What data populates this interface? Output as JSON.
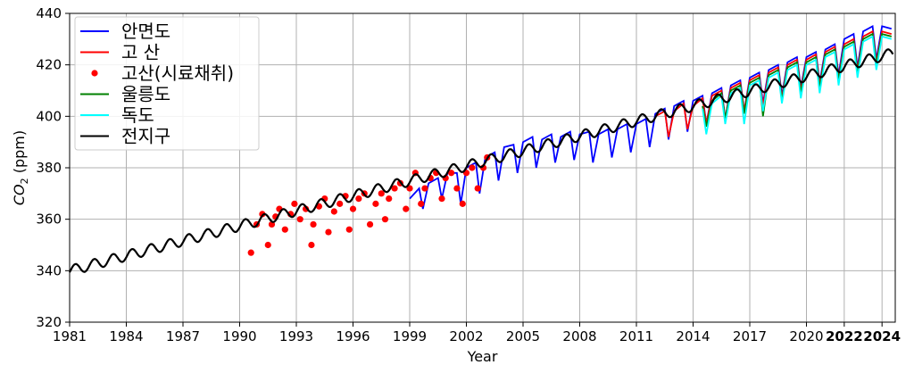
{
  "chart_data": {
    "type": "line",
    "xlabel": "Year",
    "ylabel": "CO2 (ppm)",
    "ylabel_main": "CO",
    "ylabel_sub": "2",
    "ylabel_rest": " (ppm)",
    "xlim": [
      1981,
      2024.7
    ],
    "ylim": [
      320,
      440
    ],
    "grid": true,
    "legend_position": "top-left",
    "x_ticks": [
      1981,
      1984,
      1987,
      1990,
      1993,
      1996,
      1999,
      2002,
      2005,
      2008,
      2011,
      2014,
      2017,
      2020,
      2022,
      2024
    ],
    "x_tick_labels": [
      "1981",
      "1984",
      "1987",
      "1990",
      "1993",
      "1996",
      "1999",
      "2002",
      "2005",
      "2008",
      "2011",
      "2014",
      "2017",
      "2020",
      "2022",
      "2024"
    ],
    "x_tick_bold": [
      false,
      false,
      false,
      false,
      false,
      false,
      false,
      false,
      false,
      false,
      false,
      false,
      false,
      false,
      true,
      true
    ],
    "y_ticks": [
      320,
      340,
      360,
      380,
      400,
      420,
      440
    ],
    "y_tick_labels": [
      "320",
      "340",
      "360",
      "380",
      "400",
      "420",
      "440"
    ],
    "series": [
      {
        "name": "안면도",
        "color": "#0000ff",
        "style": "line",
        "x": [
          1999.0,
          1999.5,
          1999.7,
          2000.0,
          2000.5,
          2000.7,
          2001.0,
          2001.5,
          2001.7,
          2002.0,
          2002.5,
          2002.7,
          2003.0,
          2003.5,
          2003.7,
          2004.0,
          2004.5,
          2004.7,
          2005.0,
          2005.5,
          2005.7,
          2006.0,
          2006.5,
          2006.7,
          2007.0,
          2007.5,
          2007.7,
          2008.0,
          2008.5,
          2008.7,
          2009.0,
          2009.5,
          2009.7,
          2010.0,
          2010.5,
          2010.7,
          2011.0,
          2011.5,
          2011.7,
          2012.0,
          2012.5,
          2012.7,
          2013.0,
          2013.5,
          2013.7,
          2014.0,
          2014.5,
          2014.7,
          2015.0,
          2015.5,
          2015.7,
          2016.0,
          2016.5,
          2016.7,
          2017.0,
          2017.5,
          2017.7,
          2018.0,
          2018.5,
          2018.7,
          2019.0,
          2019.5,
          2019.7,
          2020.0,
          2020.5,
          2020.7,
          2021.0,
          2021.5,
          2021.7,
          2022.0,
          2022.5,
          2022.7,
          2023.0,
          2023.5,
          2023.7,
          2024.0,
          2024.5
        ],
        "y": [
          368,
          372,
          364,
          374,
          376,
          368,
          378,
          378,
          366,
          380,
          382,
          370,
          384,
          386,
          375,
          388,
          389,
          378,
          390,
          392,
          380,
          391,
          393,
          382,
          392,
          394,
          383,
          393,
          394,
          382,
          393,
          395,
          384,
          395,
          397,
          386,
          397,
          399,
          388,
          401,
          403,
          391,
          404,
          406,
          394,
          406,
          408,
          397,
          409,
          411,
          399,
          412,
          414,
          402,
          415,
          417,
          405,
          418,
          420,
          408,
          421,
          423,
          411,
          423,
          425,
          413,
          426,
          428,
          416,
          430,
          432,
          419,
          433,
          435,
          422,
          435,
          434
        ]
      },
      {
        "name": "고   산",
        "color": "#ff0000",
        "style": "line",
        "x": [
          2012.0,
          2012.5,
          2012.7,
          2013.0,
          2013.5,
          2013.7,
          2014.0,
          2014.5,
          2014.7,
          2015.0,
          2015.5,
          2015.7,
          2016.0,
          2016.5,
          2016.7,
          2017.0,
          2017.5,
          2017.7,
          2018.0,
          2018.5,
          2018.7,
          2019.0,
          2019.5,
          2019.7,
          2020.0,
          2020.5,
          2020.7,
          2021.0,
          2021.5,
          2021.7,
          2022.0,
          2022.5,
          2022.7,
          2023.0,
          2023.5,
          2023.7,
          2024.0,
          2024.5
        ],
        "y": [
          400,
          402,
          392,
          402,
          405,
          395,
          404,
          407,
          397,
          408,
          410,
          399,
          411,
          413,
          402,
          414,
          416,
          404,
          417,
          419,
          407,
          420,
          422,
          410,
          422,
          424,
          412,
          425,
          427,
          415,
          428,
          430,
          418,
          431,
          433,
          421,
          433,
          432
        ]
      },
      {
        "name": "고산(시료채취)",
        "color": "#ff0000",
        "style": "scatter",
        "x": [
          1990.6,
          1990.9,
          1991.2,
          1991.5,
          1991.7,
          1991.9,
          1992.1,
          1992.4,
          1992.7,
          1992.9,
          1993.2,
          1993.5,
          1993.8,
          1993.9,
          1994.2,
          1994.5,
          1994.7,
          1995.0,
          1995.3,
          1995.6,
          1995.8,
          1996.0,
          1996.3,
          1996.6,
          1996.9,
          1997.2,
          1997.5,
          1997.7,
          1997.9,
          1998.2,
          1998.5,
          1998.8,
          1999.0,
          1999.3,
          1999.6,
          1999.8,
          2000.1,
          2000.4,
          2000.7,
          2000.9,
          2001.2,
          2001.5,
          2001.8,
          2002.0,
          2002.3,
          2002.6,
          2002.9,
          2003.1
        ],
        "y": [
          347,
          358,
          362,
          350,
          358,
          361,
          364,
          356,
          362,
          366,
          360,
          364,
          350,
          358,
          365,
          368,
          355,
          363,
          366,
          369,
          356,
          364,
          368,
          370,
          358,
          366,
          370,
          360,
          368,
          372,
          374,
          364,
          372,
          378,
          366,
          372,
          376,
          378,
          368,
          376,
          378,
          372,
          366,
          378,
          380,
          372,
          380,
          384
        ]
      },
      {
        "name": "울릉도",
        "color": "#008000",
        "style": "line",
        "x": [
          2014.5,
          2014.7,
          2015.0,
          2015.5,
          2015.7,
          2016.0,
          2016.5,
          2016.7,
          2017.0,
          2017.5,
          2017.7,
          2018.0,
          2018.5,
          2018.7,
          2019.0,
          2019.5,
          2019.7,
          2020.0,
          2020.5,
          2020.7,
          2021.0,
          2021.5,
          2021.7,
          2022.0,
          2022.5,
          2022.7,
          2023.0,
          2023.5,
          2023.7,
          2024.0,
          2024.5
        ],
        "y": [
          404,
          396,
          406,
          409,
          399,
          410,
          412,
          401,
          413,
          415,
          400,
          416,
          418,
          406,
          419,
          421,
          409,
          421,
          423,
          411,
          424,
          426,
          414,
          427,
          429,
          417,
          430,
          432,
          420,
          432,
          431
        ]
      },
      {
        "name": "독도",
        "color": "#00ffff",
        "style": "line",
        "x": [
          2014.5,
          2014.7,
          2015.0,
          2015.5,
          2015.7,
          2016.0,
          2016.5,
          2016.7,
          2017.0,
          2017.5,
          2017.7,
          2018.0,
          2018.5,
          2018.7,
          2019.0,
          2019.5,
          2019.7,
          2020.0,
          2020.5,
          2020.7,
          2021.0,
          2021.5,
          2021.7,
          2022.0,
          2022.5,
          2022.7,
          2023.0,
          2023.5,
          2023.7,
          2024.0,
          2024.5
        ],
        "y": [
          403,
          393,
          405,
          408,
          397,
          409,
          411,
          397,
          412,
          414,
          402,
          415,
          417,
          405,
          418,
          420,
          407,
          420,
          422,
          409,
          423,
          425,
          412,
          426,
          428,
          415,
          429,
          431,
          418,
          431,
          430
        ]
      },
      {
        "name": "전지구",
        "color": "#000000",
        "style": "line",
        "start": 1981.0,
        "rate": 1.94,
        "amplitude": 2.0,
        "x": [],
        "y": []
      }
    ]
  }
}
